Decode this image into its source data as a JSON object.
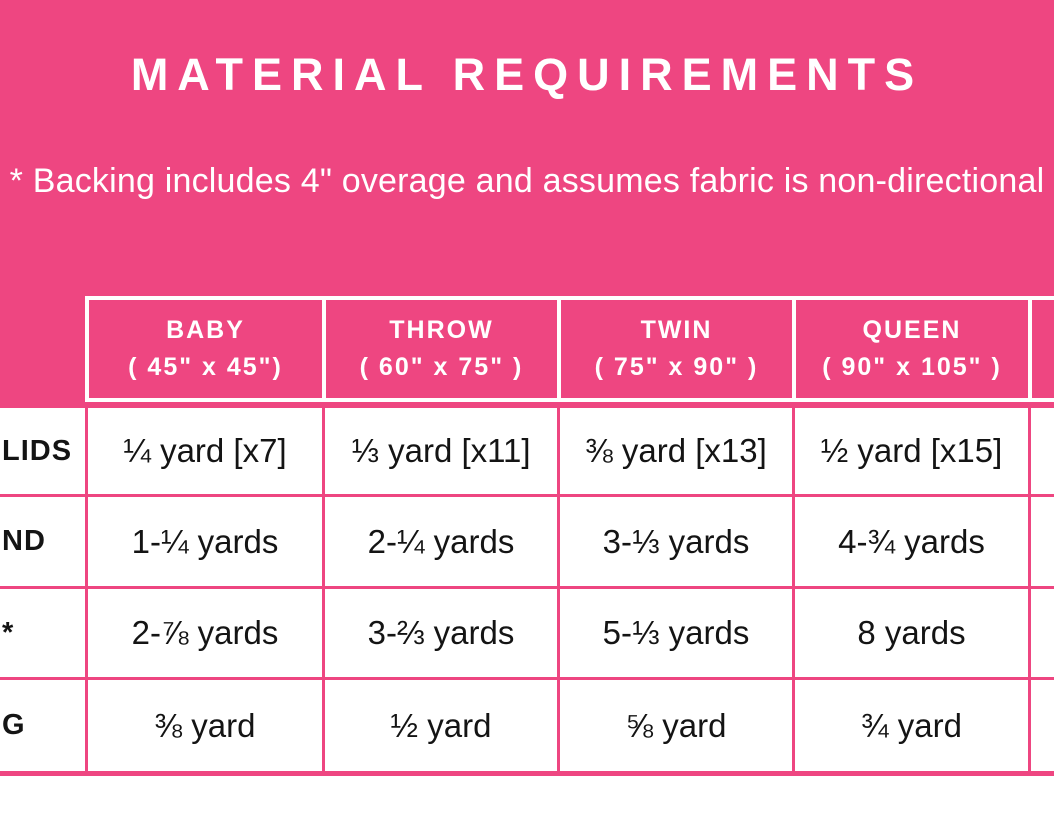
{
  "colors": {
    "pink": "#ee4681",
    "header_text": "#ffffff",
    "cell_text": "#141414"
  },
  "hero": {
    "title": "MATERIAL REQUIREMENTS",
    "note": "* Backing includes 4\" overage and assumes fabric is non-directional"
  },
  "table": {
    "columns": [
      {
        "name": "BABY",
        "size": "( 45\" x 45\")"
      },
      {
        "name": "THROW",
        "size": "( 60\" x 75\" )"
      },
      {
        "name": "TWIN",
        "size": "( 75\" x 90\" )"
      },
      {
        "name": "QUEEN",
        "size": "( 90\" x 105\" )"
      }
    ],
    "rows": [
      {
        "label": "LIDS",
        "values": [
          "¼ yard [x7]",
          "⅓ yard [x11]",
          "⅜ yard [x13]",
          "½ yard [x15]"
        ]
      },
      {
        "label": "ND",
        "values": [
          "1-¼ yards",
          "2-¼ yards",
          "3-⅓ yards",
          "4-¾ yards"
        ]
      },
      {
        "label": "*",
        "values": [
          "2-⅞ yards",
          "3-⅔ yards",
          "5-⅓ yards",
          "8 yards"
        ]
      },
      {
        "label": "G",
        "values": [
          "⅜ yard",
          "½ yard",
          "⅝ yard",
          "¾ yard"
        ]
      }
    ]
  }
}
